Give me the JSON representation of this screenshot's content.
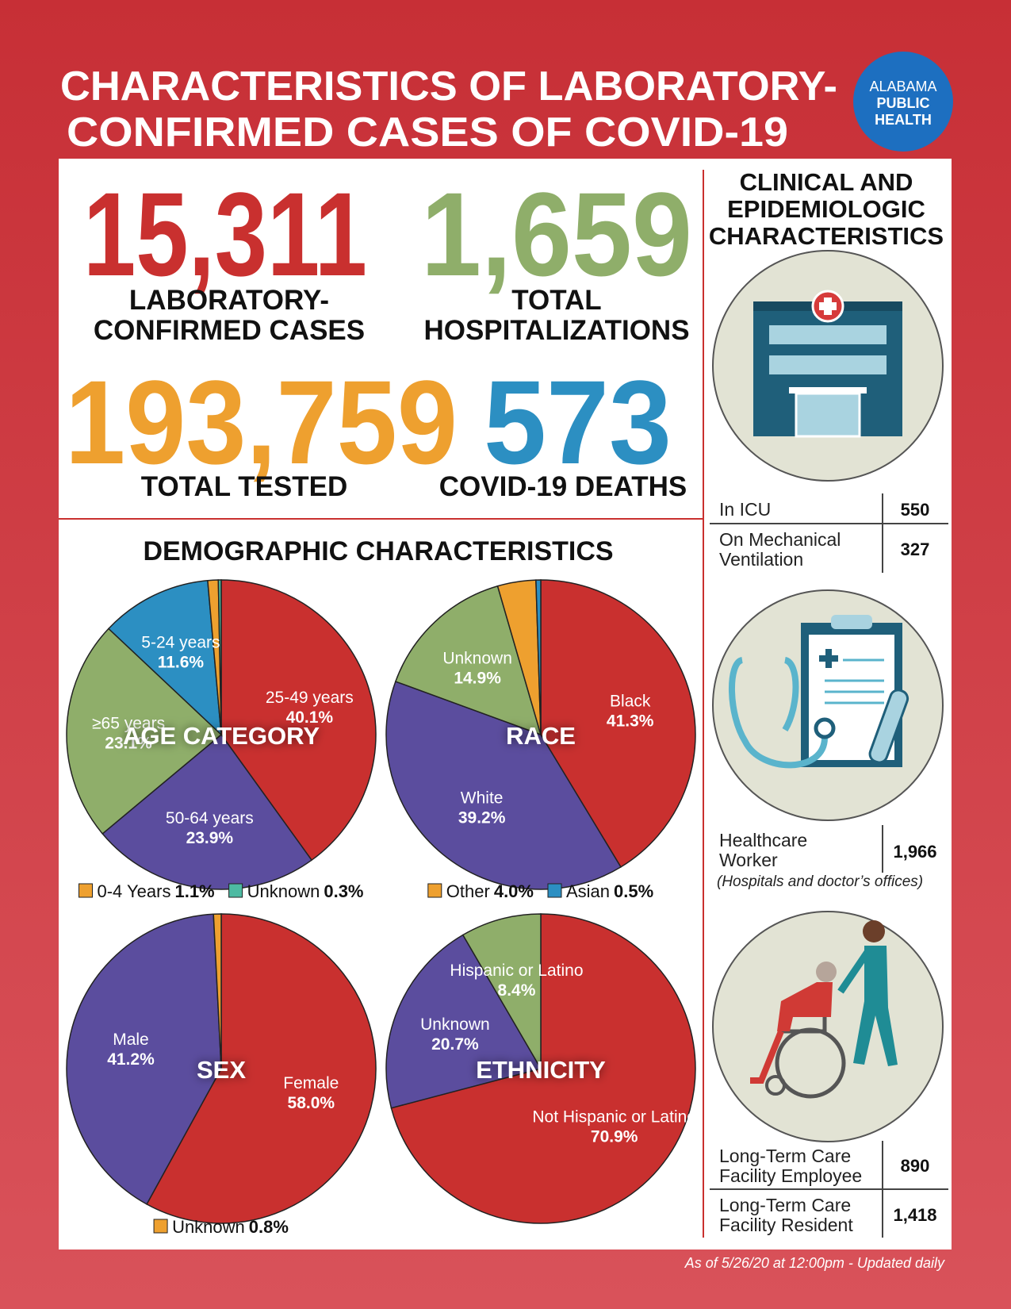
{
  "title": [
    "CHARACTERISTICS OF LABORATORY-",
    "CONFIRMED CASES OF COVID-19"
  ],
  "logo": [
    "ALABAMA",
    "PUBLIC",
    "HEALTH"
  ],
  "stats": [
    {
      "value": "15,311",
      "label": [
        "LABORATORY-",
        "CONFIRMED CASES"
      ]
    },
    {
      "value": "1,659",
      "label": [
        "TOTAL",
        "HOSPITALIZATIONS"
      ]
    },
    {
      "value": "193,759",
      "label": [
        "TOTAL TESTED"
      ]
    },
    {
      "value": "573",
      "label": [
        "COVID-19 DEATHS"
      ]
    }
  ],
  "demographics_title": "DEMOGRAPHIC CHARACTERISTICS",
  "chart_data": [
    {
      "type": "pie",
      "title": "AGE CATEGORY",
      "categories": [
        "25-49 years",
        "50-64 years",
        "≥65 years",
        "5-24 years",
        "0-4 Years",
        "Unknown"
      ],
      "values": [
        40.1,
        23.9,
        23.1,
        11.6,
        1.1,
        0.3
      ],
      "value_labels": [
        "40.1%",
        "23.9%",
        "23.1%",
        "11.6%",
        "1.1%",
        "0.3%"
      ],
      "colors": [
        "#c9302f",
        "#5b4d9e",
        "#8fae6a",
        "#2c8fc2",
        "#eea02f",
        "#4dbaa2"
      ]
    },
    {
      "type": "pie",
      "title": "RACE",
      "categories": [
        "Black",
        "White",
        "Unknown",
        "Other",
        "Asian"
      ],
      "values": [
        41.3,
        39.2,
        14.9,
        4.0,
        0.5
      ],
      "value_labels": [
        "41.3%",
        "39.2%",
        "14.9%",
        "4.0%",
        "0.5%"
      ],
      "colors": [
        "#c9302f",
        "#5b4d9e",
        "#8fae6a",
        "#eea02f",
        "#2c8fc2"
      ]
    },
    {
      "type": "pie",
      "title": "SEX",
      "categories": [
        "Female",
        "Male",
        "Unknown"
      ],
      "values": [
        58.0,
        41.2,
        0.8
      ],
      "value_labels": [
        "58.0%",
        "41.2%",
        "0.8%"
      ],
      "colors": [
        "#c9302f",
        "#5b4d9e",
        "#eea02f"
      ]
    },
    {
      "type": "pie",
      "title": "ETHNICITY",
      "categories": [
        "Not Hispanic or Latino",
        "Unknown",
        "Hispanic or Latino"
      ],
      "values": [
        70.9,
        20.7,
        8.4
      ],
      "value_labels": [
        "70.9%",
        "20.7%",
        "8.4%"
      ],
      "colors": [
        "#c9302f",
        "#5b4d9e",
        "#8fae6a"
      ]
    }
  ],
  "clinical": {
    "title": [
      "CLINICAL AND",
      "EPIDEMIOLOGIC",
      "CHARACTERISTICS"
    ],
    "rows": [
      {
        "label": [
          "In ICU"
        ],
        "value": "550"
      },
      {
        "label": [
          "On Mechanical",
          "Ventilation"
        ],
        "value": "327"
      },
      {
        "label": [
          "Healthcare",
          "Worker"
        ],
        "value": "1,966",
        "note": "(Hospitals and doctor’s offices)"
      },
      {
        "label": [
          "Long-Term Care",
          "Facility Employee"
        ],
        "value": "890"
      },
      {
        "label": [
          "Long-Term Care",
          "Facility Resident"
        ],
        "value": "1,418"
      }
    ]
  },
  "footer": "As of 5/26/20 at 12:00pm - Updated daily"
}
